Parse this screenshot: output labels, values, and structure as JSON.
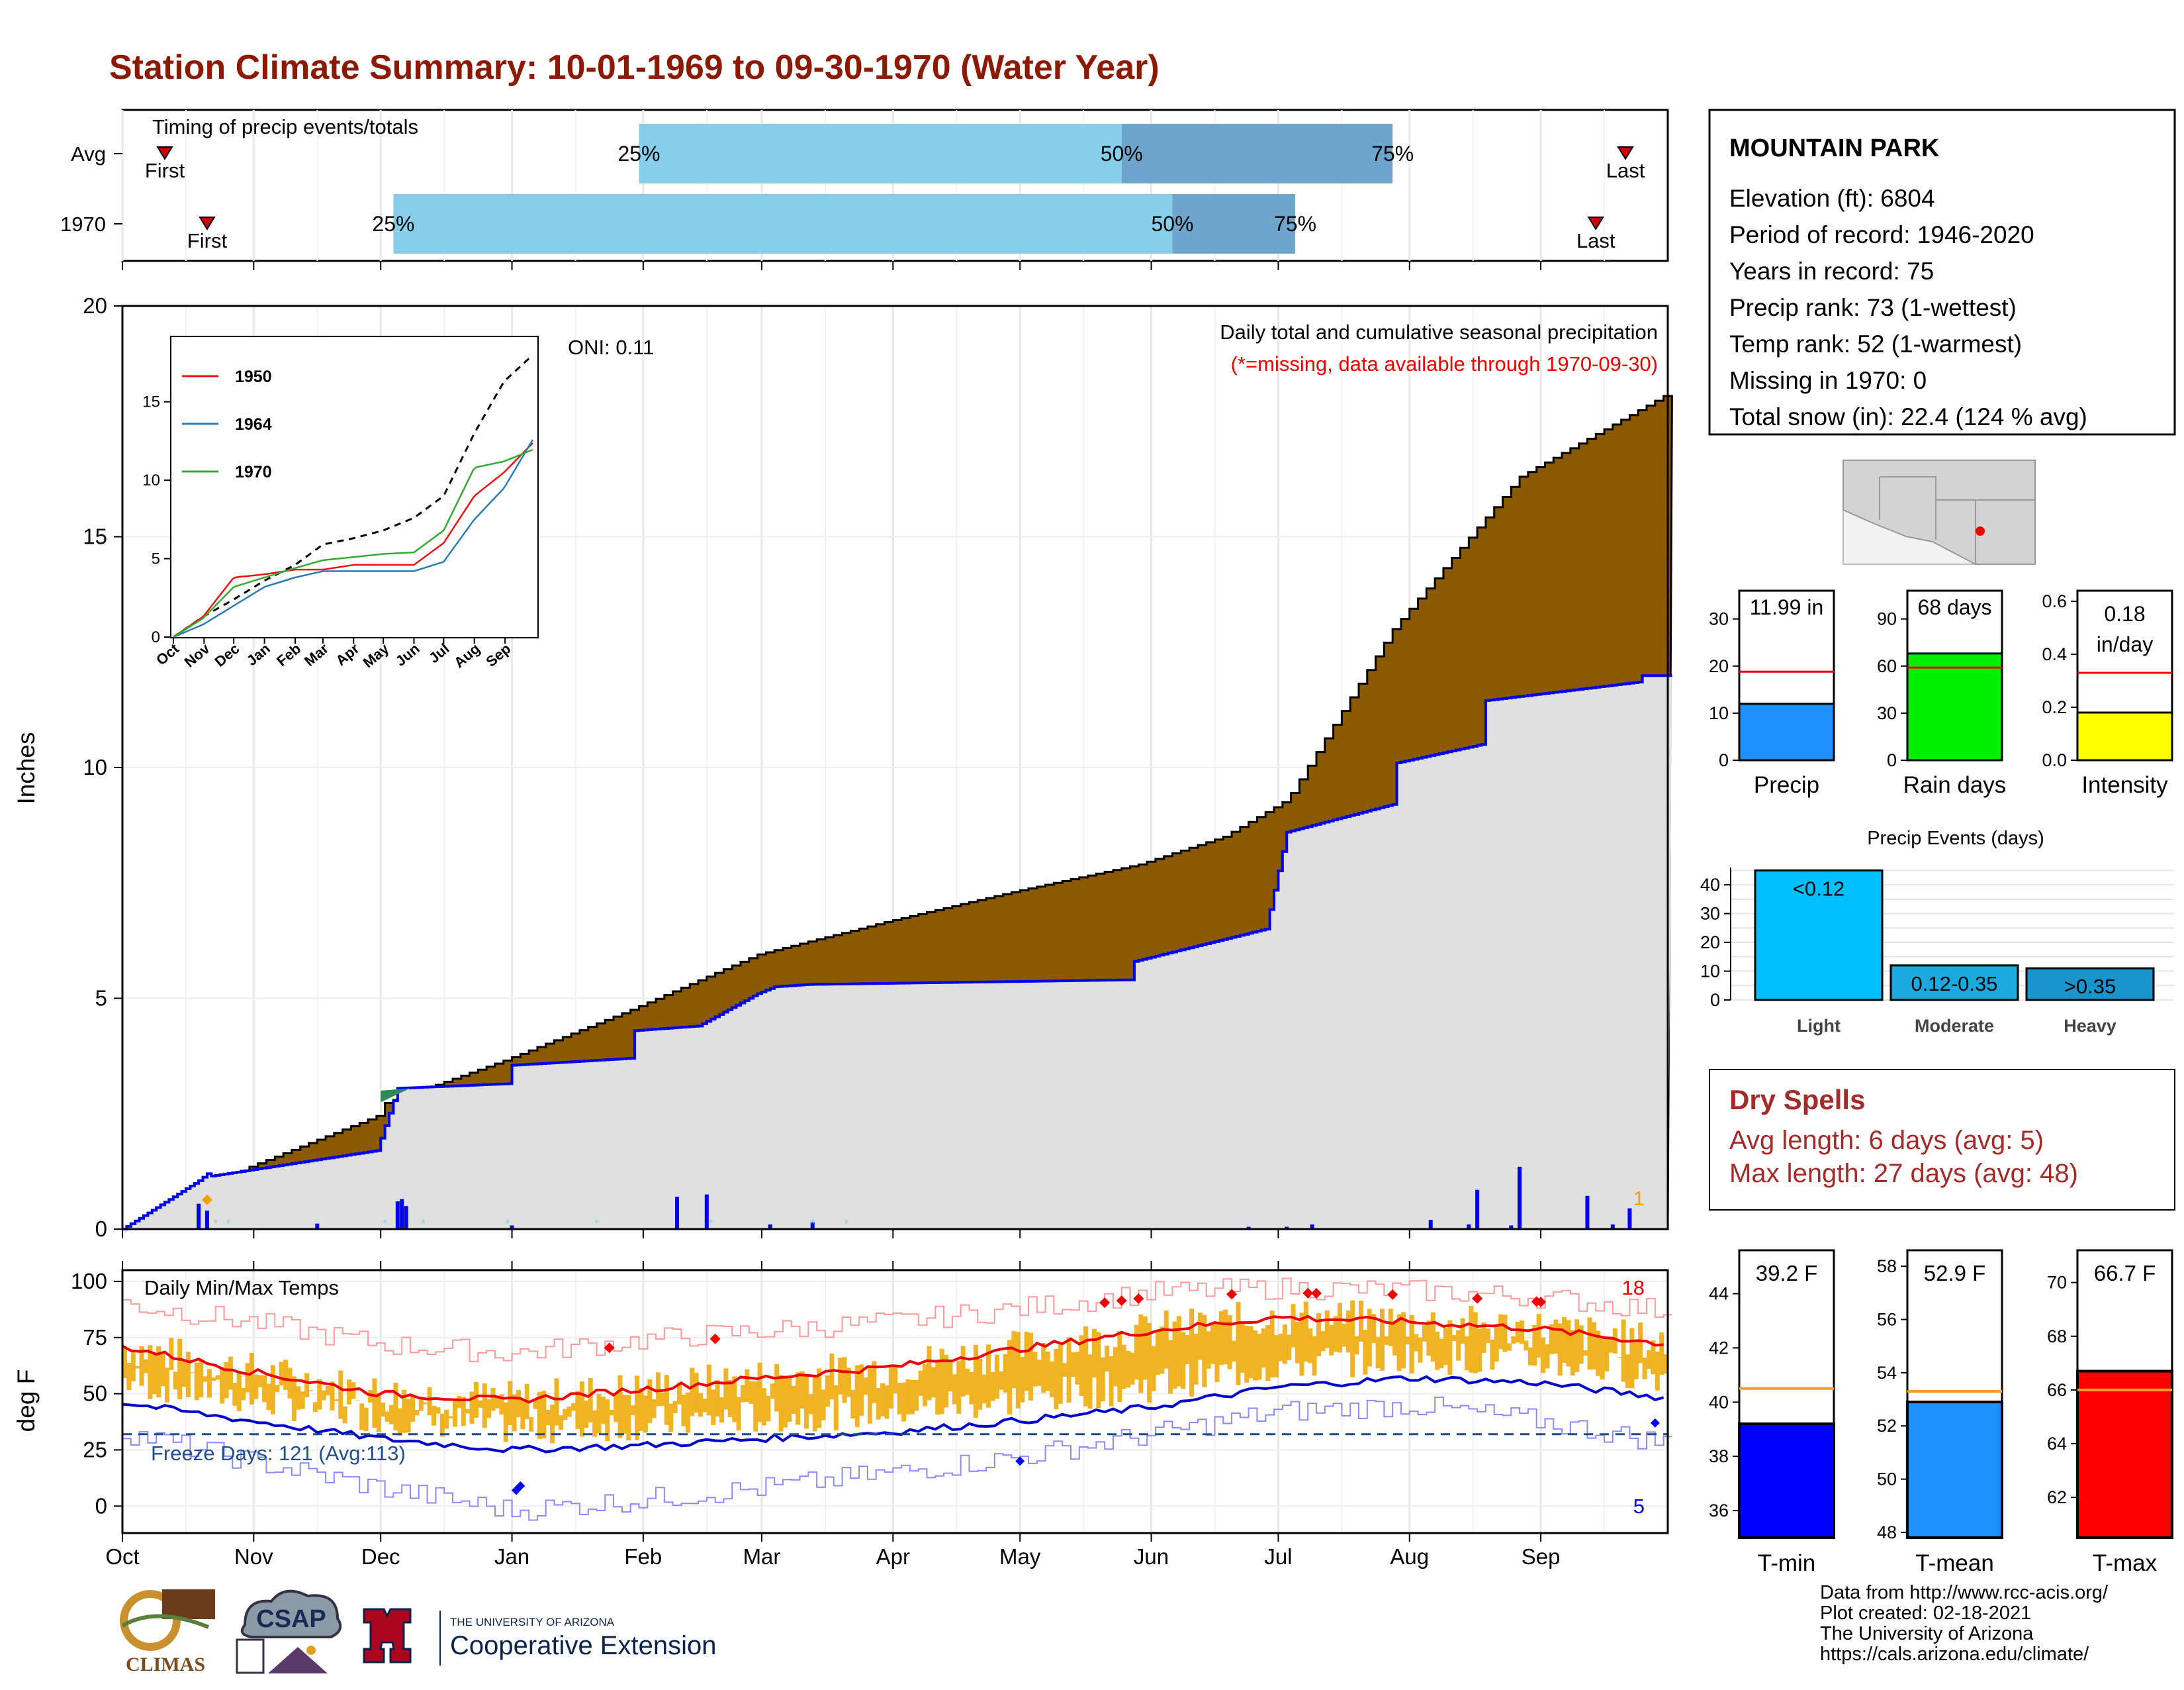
{
  "title": "Station Climate Summary: 10-01-1969 to 09-30-1970 (Water Year)",
  "colors": {
    "title": "#8b1a00",
    "cumulative_avg_fill": "#8b5a00",
    "cumulative_obs_fill": "#e0e0e0",
    "cumulative_obs_line": "#0000ee",
    "timing_light": "#87ceeb",
    "timing_dark": "#6ea5cc",
    "tmax_bar": "#f0b323",
    "tmax_avg_line": "#ee0000",
    "tmin_avg_line": "#0000cc",
    "missing_text": "#ee0000",
    "dry_spell_text": "#a52a2a"
  },
  "months": [
    "Oct",
    "Nov",
    "Dec",
    "Jan",
    "Feb",
    "Mar",
    "Apr",
    "May",
    "Jun",
    "Jul",
    "Aug",
    "Sep"
  ],
  "timing": {
    "caption": "Timing of precip events/totals",
    "rows": [
      {
        "label": "Avg",
        "first": "First",
        "last": "Last",
        "p25": "25%",
        "p50": "50%",
        "p75": "75%",
        "first_day": 10,
        "last_day": 355,
        "p25_day": 122,
        "p50_day": 236,
        "p75_day": 300
      },
      {
        "label": "1970",
        "first": "First",
        "last": "Last",
        "p25": "25%",
        "p50": "50%",
        "p75": "75%",
        "first_day": 20,
        "last_day": 348,
        "p25_day": 64,
        "p50_day": 248,
        "p75_day": 277
      }
    ]
  },
  "precip_panel": {
    "ylabel": "Inches",
    "yticks": [
      "0",
      "5",
      "10",
      "15",
      "20"
    ],
    "caption": "Daily total and cumulative seasonal precipitation",
    "missing_note": "(*=missing, data available through 1970-09-30)",
    "oni": "ONI: 0.11",
    "missing_marker_count": "1",
    "missing_marker_color": "#f0a000"
  },
  "inset": {
    "yticks": [
      "0",
      "5",
      "10",
      "15"
    ],
    "xticks": [
      "Oct",
      "Nov",
      "Dec",
      "Jan",
      "Feb",
      "Mar",
      "Apr",
      "May",
      "Jun",
      "Jul",
      "Aug",
      "Sep"
    ],
    "legend": [
      {
        "name": "1950",
        "color": "#ee1111"
      },
      {
        "name": "1964",
        "color": "#2b7bb9"
      },
      {
        "name": "1970",
        "color": "#33aa33"
      }
    ]
  },
  "temp_panel": {
    "ylabel": "deg F",
    "caption": "Daily Min/Max Temps",
    "yticks": [
      "0",
      "25",
      "50",
      "75",
      "100"
    ],
    "freeze_days": "Freeze Days: 121 (Avg:113)",
    "record_high_count": "18",
    "record_low_count": "5"
  },
  "station": {
    "name": "MOUNTAIN PARK",
    "lines": [
      "Elevation (ft): 6804",
      "Period of record: 1946-2020",
      "Years in record: 75",
      "Precip rank: 73 (1-wettest)",
      "Temp rank: 52 (1-warmest)",
      "Missing in 1970: 0",
      "Total snow (in): 22.4 (124 % avg)"
    ]
  },
  "mini_bars": [
    {
      "label": "Precip",
      "value_text": "11.99 in",
      "value": 11.99,
      "avg": 18.8,
      "ymax": 36,
      "yticks": [
        "0",
        "10",
        "20",
        "30"
      ],
      "tick_vals": [
        0,
        10,
        20,
        30
      ],
      "color": "#1e90ff"
    },
    {
      "label": "Rain days",
      "value_text": "68 days",
      "value": 68,
      "avg": 59,
      "ymax": 108,
      "yticks": [
        "0",
        "30",
        "60",
        "90"
      ],
      "tick_vals": [
        0,
        30,
        60,
        90
      ],
      "color": "#00ee00"
    },
    {
      "label": "Intensity",
      "value_text": "0.18 in/day",
      "value_line1": "0.18",
      "value_line2": "in/day",
      "value": 0.18,
      "avg": 0.33,
      "ymax": 0.64,
      "yticks": [
        "0.0",
        "0.2",
        "0.4",
        "0.6"
      ],
      "tick_vals": [
        0,
        0.2,
        0.4,
        0.6
      ],
      "color": "#ffff00"
    }
  ],
  "precip_events": {
    "title": "Precip Events (days)",
    "yticks": [
      "0",
      "10",
      "20",
      "30",
      "40"
    ],
    "bars": [
      {
        "category": "Light",
        "label": "<0.12",
        "value": 45,
        "color": "#00bfff"
      },
      {
        "category": "Moderate",
        "label": "0.12-0.35",
        "value": 12,
        "color": "#1ca9e0"
      },
      {
        "category": "Heavy",
        "label": ">0.35",
        "value": 11,
        "color": "#1a94cc"
      }
    ]
  },
  "dry_spells": {
    "title": "Dry Spells",
    "avg_line": "Avg length: 6 days (avg: 5)",
    "max_line": "Max length: 27 days (avg: 48)"
  },
  "temp_bars": [
    {
      "label": "T-min",
      "value_text": "39.2 F",
      "value": 39.2,
      "avg": 40.5,
      "ymin": 35,
      "ymax": 45.6,
      "yticks": [
        "36",
        "38",
        "40",
        "42",
        "44"
      ],
      "tick_vals": [
        36,
        38,
        40,
        42,
        44
      ],
      "color": "#0000ff"
    },
    {
      "label": "T-mean",
      "value_text": "52.9 F",
      "value": 52.9,
      "avg": 53.3,
      "ymin": 47.8,
      "ymax": 58.6,
      "yticks": [
        "48",
        "50",
        "52",
        "54",
        "56",
        "58"
      ],
      "tick_vals": [
        48,
        50,
        52,
        54,
        56,
        58
      ],
      "color": "#1e90ff"
    },
    {
      "label": "T-max",
      "value_text": "66.7 F",
      "value": 66.7,
      "avg": 66.0,
      "ymin": 60.5,
      "ymax": 71.2,
      "yticks": [
        "62",
        "64",
        "66",
        "68",
        "70"
      ],
      "tick_vals": [
        62,
        64,
        66,
        68,
        70
      ],
      "color": "#ff0000"
    }
  ],
  "footer": {
    "lines": [
      "Data from http://www.rcc-acis.org/",
      "Plot created: 02-18-2021",
      "The University of Arizona",
      "https://cals.arizona.edu/climate/"
    ]
  },
  "logos": {
    "climas": "CLIMAS",
    "csap": "CSAP",
    "ua_small": "THE UNIVERSITY OF ARIZONA",
    "ua_big": "Cooperative Extension"
  },
  "chart_data": [
    {
      "type": "area",
      "title": "Daily total and cumulative seasonal precipitation",
      "ylabel": "Inches",
      "ylim": [
        0,
        20
      ],
      "x_unit": "day of water year",
      "series": [
        {
          "name": "",
          "kind": "cumulative average",
          "x": [
            0,
            30,
            60,
            61,
            90,
            120,
            150,
            180,
            210,
            240,
            260,
            275,
            300,
            330,
            365
          ],
          "y": [
            0,
            1.35,
            2.45,
            2.7,
            3.65,
            4.75,
            5.95,
            6.65,
            7.3,
            7.9,
            8.5,
            9.3,
            13.0,
            16.3,
            18.1
          ]
        },
        {
          "name": "1970",
          "kind": "cumulative observed",
          "x": [
            0,
            18,
            20,
            21,
            60,
            65,
            91,
            92,
            120,
            121,
            136,
            150,
            154,
            162,
            238,
            239,
            270,
            275,
            300,
            301,
            321,
            322,
            358,
            359,
            365
          ],
          "y": [
            0,
            1.05,
            1.2,
            1.15,
            1.7,
            3.05,
            3.15,
            3.55,
            3.7,
            4.3,
            4.4,
            5.1,
            5.25,
            5.3,
            5.4,
            5.8,
            6.5,
            8.6,
            9.2,
            10.1,
            10.5,
            11.45,
            11.85,
            11.99,
            11.99
          ]
        }
      ],
      "daily_precip": {
        "x": [
          18,
          20,
          46,
          65,
          66,
          67,
          92,
          131,
          138,
          153,
          163,
          266,
          275,
          281,
          309,
          318,
          320,
          328,
          330,
          346,
          352,
          356
        ],
        "y": [
          0.55,
          0.4,
          0.12,
          0.6,
          0.65,
          0.5,
          0.08,
          0.7,
          0.75,
          0.1,
          0.15,
          0.05,
          0.05,
          0.1,
          0.2,
          0.1,
          0.85,
          0.08,
          1.35,
          0.72,
          0.1,
          0.45
        ]
      }
    },
    {
      "type": "line",
      "title": "",
      "x_labels": [
        "Oct",
        "Nov",
        "Dec",
        "Jan",
        "Feb",
        "Mar",
        "Apr",
        "May",
        "Jun",
        "Jul",
        "Aug",
        "Sep"
      ],
      "ylim": [
        0,
        19
      ],
      "series": [
        {
          "name": "",
          "kind": "average",
          "x": [
            0,
            30,
            61,
            92,
            123,
            151,
            182,
            212,
            243,
            273,
            304,
            334,
            365
          ],
          "y": [
            0,
            1.3,
            2.4,
            3.6,
            4.6,
            5.9,
            6.3,
            6.8,
            7.6,
            9.0,
            13.0,
            16.3,
            18.1
          ]
        },
        {
          "name": "1950",
          "x": [
            0,
            30,
            61,
            92,
            123,
            151,
            182,
            212,
            243,
            273,
            304,
            334,
            365
          ],
          "y": [
            0,
            1.3,
            3.8,
            4.0,
            4.3,
            4.3,
            4.6,
            4.6,
            4.6,
            6.0,
            9.0,
            10.5,
            12.5
          ]
        },
        {
          "name": "1964",
          "x": [
            0,
            30,
            61,
            92,
            123,
            151,
            182,
            212,
            243,
            273,
            304,
            334,
            365
          ],
          "y": [
            0,
            0.8,
            2.0,
            3.2,
            3.8,
            4.2,
            4.2,
            4.2,
            4.2,
            4.8,
            7.5,
            9.5,
            12.8
          ]
        },
        {
          "name": "1970",
          "x": [
            0,
            30,
            61,
            92,
            123,
            151,
            182,
            212,
            243,
            273,
            304,
            334,
            365
          ],
          "y": [
            0,
            1.2,
            3.2,
            3.8,
            4.4,
            4.9,
            5.1,
            5.3,
            5.4,
            6.8,
            10.8,
            11.2,
            12.0
          ]
        }
      ]
    },
    {
      "type": "line",
      "title": "Daily Min/Max Temps",
      "ylabel": "deg F",
      "ylim": [
        -12,
        105
      ],
      "freeze_line": 32,
      "series": [
        {
          "name": "",
          "kind": "avg max",
          "x": [
            0,
            30,
            61,
            92,
            123,
            151,
            182,
            212,
            243,
            273,
            304,
            334,
            365
          ],
          "y": [
            71,
            60,
            50,
            47,
            52,
            57,
            62,
            70,
            78,
            84,
            82,
            79,
            72
          ]
        },
        {
          "name": "",
          "kind": "avg min",
          "x": [
            0,
            30,
            61,
            92,
            123,
            151,
            182,
            212,
            243,
            273,
            304,
            334,
            365
          ],
          "y": [
            46,
            38,
            30,
            25,
            27,
            30,
            33,
            38,
            44,
            53,
            57,
            55,
            48
          ]
        },
        {
          "name": "",
          "kind": "record max",
          "x": [
            0,
            30,
            61,
            92,
            123,
            151,
            182,
            212,
            243,
            273,
            304,
            334,
            365
          ],
          "y": [
            90,
            82,
            72,
            68,
            74,
            78,
            82,
            88,
            95,
            97,
            96,
            93,
            87
          ]
        },
        {
          "name": "",
          "kind": "record min",
          "x": [
            0,
            30,
            61,
            92,
            123,
            151,
            182,
            212,
            243,
            273,
            304,
            334,
            365
          ],
          "y": [
            33,
            20,
            8,
            -2,
            3,
            8,
            15,
            22,
            32,
            42,
            45,
            38,
            28
          ]
        }
      ]
    },
    {
      "type": "bar",
      "title": "Precip Events (days)",
      "categories": [
        "Light",
        "Moderate",
        "Heavy"
      ],
      "values": [
        45,
        12,
        11
      ],
      "ylim": [
        0,
        46
      ]
    }
  ]
}
